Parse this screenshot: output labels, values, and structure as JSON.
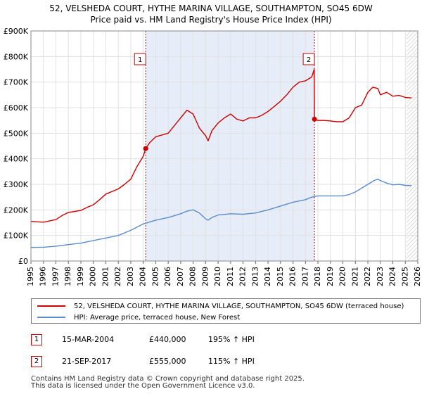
{
  "header": {
    "title_line1": "52, VELSHEDA COURT, HYTHE MARINA VILLAGE, SOUTHAMPTON, SO45 6DW",
    "title_line2": "Price paid vs. HM Land Registry's House Price Index (HPI)"
  },
  "colors": {
    "price_line": "#cc0000",
    "hpi_line": "#5b8ccc",
    "shade": "#dde6f5"
  },
  "chart_data": {
    "type": "line",
    "x_range": [
      1995,
      2026
    ],
    "ylim": [
      0,
      900000
    ],
    "yticks": [
      {
        "value": 0,
        "label": "£0"
      },
      {
        "value": 100000,
        "label": "£100K"
      },
      {
        "value": 200000,
        "label": "£200K"
      },
      {
        "value": 300000,
        "label": "£300K"
      },
      {
        "value": 400000,
        "label": "£400K"
      },
      {
        "value": 500000,
        "label": "£500K"
      },
      {
        "value": 600000,
        "label": "£600K"
      },
      {
        "value": 700000,
        "label": "£700K"
      },
      {
        "value": 800000,
        "label": "£800K"
      },
      {
        "value": 900000,
        "label": "£900K"
      }
    ],
    "xticks": [
      "1995",
      "1996",
      "1997",
      "1998",
      "1999",
      "2000",
      "2001",
      "2002",
      "2003",
      "2004",
      "2005",
      "2006",
      "2007",
      "2008",
      "2009",
      "2010",
      "2011",
      "2012",
      "2013",
      "2014",
      "2015",
      "2016",
      "2017",
      "2018",
      "2019",
      "2020",
      "2021",
      "2022",
      "2023",
      "2024",
      "2025",
      "2026"
    ],
    "grid": true,
    "shaded_region": [
      2004.2,
      2017.72
    ],
    "future_hatch_from": 2025.1,
    "series": [
      {
        "name": "52, VELSHEDA COURT, HYTHE MARINA VILLAGE, SOUTHAMPTON, SO45 6DW (terraced house)",
        "color": "#cc0000",
        "x": [
          1995.0,
          1996.0,
          1997.0,
          1997.5,
          1998.0,
          1999.0,
          1999.5,
          2000.0,
          2000.5,
          2001.0,
          2001.5,
          2002.0,
          2002.5,
          2003.0,
          2003.5,
          2004.0,
          2004.2,
          2004.5,
          2005.0,
          2006.0,
          2006.5,
          2007.0,
          2007.5,
          2008.0,
          2008.5,
          2009.0,
          2009.2,
          2009.5,
          2010.0,
          2010.5,
          2011.0,
          2011.5,
          2012.0,
          2012.5,
          2013.0,
          2013.5,
          2014.0,
          2014.5,
          2015.0,
          2015.5,
          2016.0,
          2016.5,
          2017.0,
          2017.5,
          2017.7,
          2017.72,
          2018.0,
          2018.5,
          2019.0,
          2019.5,
          2020.0,
          2020.5,
          2021.0,
          2021.5,
          2022.0,
          2022.4,
          2022.8,
          2023.0,
          2023.5,
          2024.0,
          2024.5,
          2025.0,
          2025.5
        ],
        "y": [
          155000,
          152000,
          162000,
          178000,
          190000,
          198000,
          210000,
          220000,
          240000,
          262000,
          272000,
          282000,
          300000,
          320000,
          370000,
          410000,
          440000,
          462000,
          486000,
          500000,
          530000,
          560000,
          590000,
          575000,
          520000,
          490000,
          470000,
          510000,
          540000,
          560000,
          575000,
          555000,
          548000,
          560000,
          560000,
          570000,
          585000,
          605000,
          625000,
          650000,
          680000,
          700000,
          705000,
          720000,
          750000,
          555000,
          550000,
          550000,
          548000,
          545000,
          545000,
          560000,
          600000,
          610000,
          660000,
          680000,
          675000,
          650000,
          660000,
          645000,
          648000,
          640000,
          638000
        ]
      },
      {
        "name": "HPI: Average price, terraced house, New Forest",
        "color": "#5b8ccc",
        "x": [
          1995.0,
          1996.0,
          1997.0,
          1998.0,
          1999.0,
          2000.0,
          2001.0,
          2002.0,
          2003.0,
          2004.0,
          2005.0,
          2006.0,
          2007.0,
          2007.5,
          2008.0,
          2008.5,
          2009.0,
          2009.2,
          2009.5,
          2010.0,
          2011.0,
          2012.0,
          2013.0,
          2014.0,
          2015.0,
          2016.0,
          2017.0,
          2017.5,
          2018.0,
          2019.0,
          2020.0,
          2020.5,
          2021.0,
          2021.5,
          2022.0,
          2022.5,
          2022.8,
          2023.0,
          2023.5,
          2024.0,
          2024.5,
          2025.0,
          2025.5
        ],
        "y": [
          53000,
          54000,
          58000,
          64000,
          70000,
          80000,
          90000,
          100000,
          120000,
          145000,
          160000,
          170000,
          185000,
          195000,
          200000,
          188000,
          165000,
          160000,
          170000,
          180000,
          185000,
          183000,
          188000,
          200000,
          215000,
          230000,
          240000,
          250000,
          255000,
          255000,
          255000,
          260000,
          270000,
          285000,
          300000,
          315000,
          320000,
          315000,
          305000,
          298000,
          300000,
          296000,
          295000
        ]
      }
    ],
    "markers": [
      {
        "label": "1",
        "x": 2004.2,
        "y": 440000
      },
      {
        "label": "2",
        "x": 2017.72,
        "y": 555000
      }
    ]
  },
  "legend": {
    "series1_label": "52, VELSHEDA COURT, HYTHE MARINA VILLAGE, SOUTHAMPTON, SO45 6DW (terraced house)",
    "series2_label": "HPI: Average price, terraced house, New Forest"
  },
  "transactions": [
    {
      "label": "1",
      "date": "15-MAR-2004",
      "price": "£440,000",
      "hpi": "195% ↑ HPI"
    },
    {
      "label": "2",
      "date": "21-SEP-2017",
      "price": "£555,000",
      "hpi": "115% ↑ HPI"
    }
  ],
  "footer": {
    "line1": "Contains HM Land Registry data © Crown copyright and database right 2025.",
    "line2": "This data is licensed under the Open Government Licence v3.0."
  }
}
